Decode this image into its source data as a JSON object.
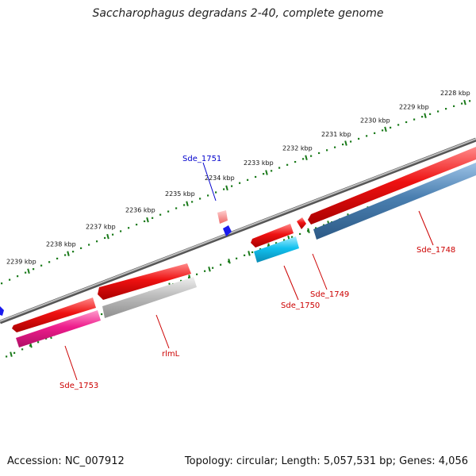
{
  "title": "Saccharophagus degradans 2-40, complete genome",
  "accession": "Accession: NC_007912",
  "summary": "Topology: circular; Length: 5,057,531 bp; Genes: 4,056",
  "scale_labels": [
    "2228 kbp",
    "2229 kbp",
    "2230 kbp",
    "2231 kbp",
    "2232 kbp",
    "2233 kbp",
    "2234 kbp",
    "2235 kbp",
    "2236 kbp",
    "2237 kbp",
    "2238 kbp",
    "2239 kbp"
  ],
  "genes": [
    {
      "name": "Sde_1748",
      "color": "#cc0000"
    },
    {
      "name": "Sde_1749",
      "color": "#cc0000"
    },
    {
      "name": "Sde_1750",
      "color": "#cc0000"
    },
    {
      "name": "Sde_1751",
      "color": "#0000cc"
    },
    {
      "name": "rlmL",
      "color": "#cc0000"
    },
    {
      "name": "Sde_1753",
      "color": "#cc0000"
    }
  ],
  "colors": {
    "backbone": "#808080",
    "tick": "#1a7a1a",
    "feature_red": "#ee1111",
    "feature_steelblue": "#4a7fb0",
    "feature_cyan": "#11c0ee",
    "feature_gray": "#b8b8b8",
    "feature_magenta": "#ee1c8c",
    "feature_blue": "#1a1aee"
  }
}
